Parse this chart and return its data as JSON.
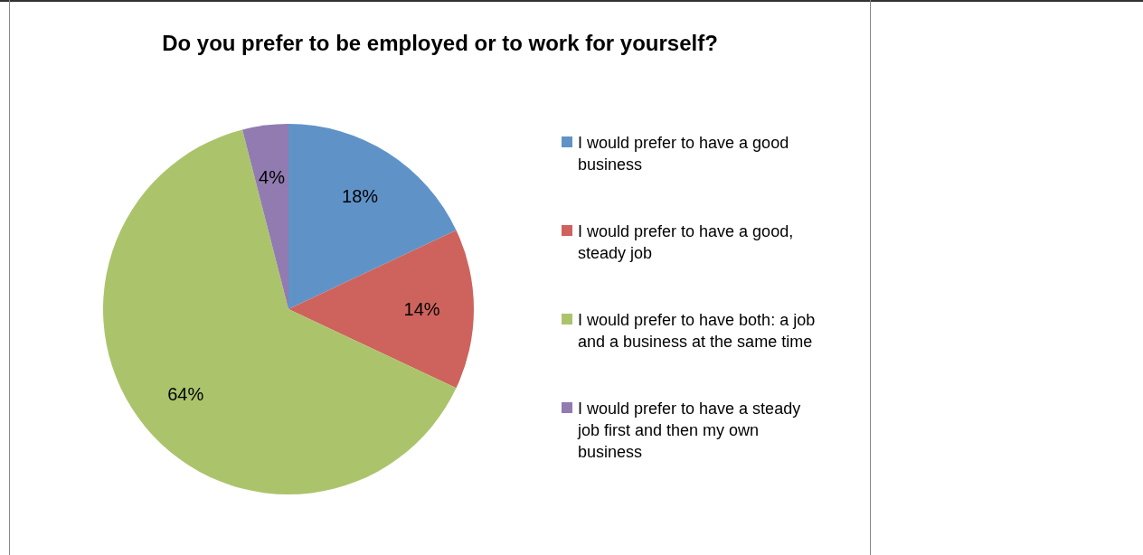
{
  "chart_data": {
    "type": "pie",
    "title": "Do you prefer to be employed or to work for yourself?",
    "categories": [
      "I would prefer to have a good business",
      "I would prefer to have a good, steady job",
      "I would prefer to have both: a job and a business at the same time",
      "I would prefer to have a steady job first and then my own business"
    ],
    "values": [
      18,
      14,
      64,
      4
    ],
    "colors": [
      "#5f93c8",
      "#cd635c",
      "#abc46b",
      "#917bb0"
    ],
    "value_labels": [
      "18%",
      "14%",
      "64%",
      "4%"
    ],
    "legend": "right"
  }
}
